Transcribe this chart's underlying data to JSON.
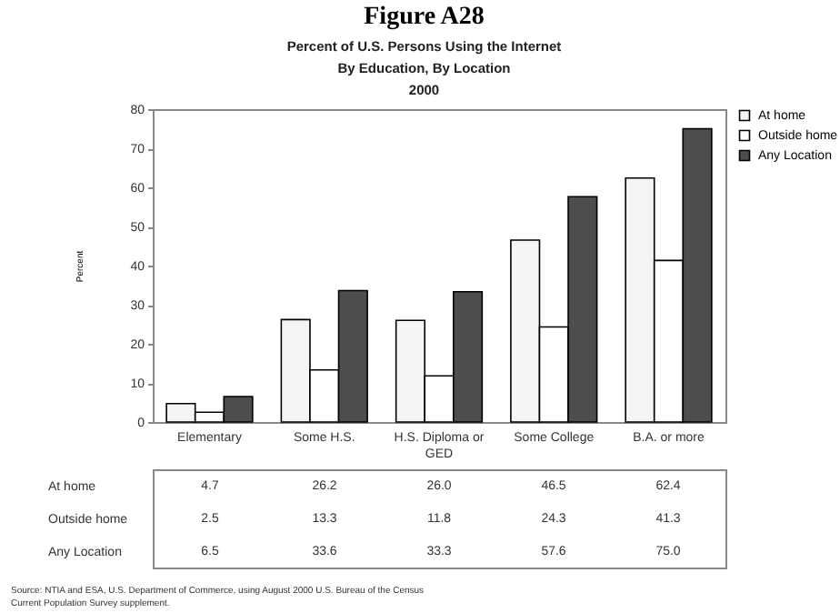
{
  "chart_data": {
    "type": "bar",
    "title": "Figure A28",
    "subtitle": "Percent of U.S. Persons Using the Internet\nBy Education, By Location\n2000",
    "ylabel": "Percent",
    "categories": [
      "Elementary",
      "Some H.S.",
      "H.S. Diploma or GED",
      "Some College",
      "B.A. or more"
    ],
    "series": [
      {
        "name": "At home",
        "color": "#f5f5f5",
        "values": [
          4.7,
          26.2,
          26.0,
          46.5,
          62.4
        ],
        "value_labels": [
          "4.7",
          "26.2",
          "26.0",
          "46.5",
          "62.4"
        ]
      },
      {
        "name": "Outside home",
        "color": "#ffffff",
        "values": [
          2.5,
          13.3,
          11.8,
          24.3,
          41.3
        ],
        "value_labels": [
          "2.5",
          "13.3",
          "11.8",
          "24.3",
          "41.3"
        ]
      },
      {
        "name": "Any Location",
        "color": "#4d4d4d",
        "values": [
          6.5,
          33.6,
          33.3,
          57.6,
          75.0
        ],
        "value_labels": [
          "6.5",
          "33.6",
          "33.3",
          "57.6",
          "75.0"
        ]
      }
    ],
    "ylim": [
      0,
      80
    ],
    "yticks": [
      0,
      10,
      20,
      30,
      40,
      50,
      60,
      70,
      80
    ],
    "legend": "top right",
    "grid": false,
    "annotations": [
      "Source:  NTIA and ESA, U.S. Department of Commerce, using August 2000 U.S. Bureau of the Census",
      "Current Population Survey supplement."
    ]
  }
}
